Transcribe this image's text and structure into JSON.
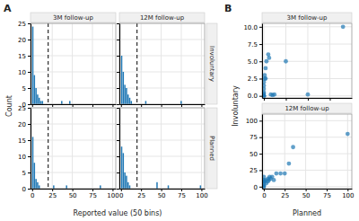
{
  "chart_data": [
    {
      "type": "histogram",
      "title": "A",
      "x_label": "Reported value (50 bins)",
      "y_label": "Count",
      "columns": [
        "3M follow-up",
        "12M follow-up"
      ],
      "rows": [
        "Involuntary",
        "Planned"
      ],
      "bins": [
        0,
        2,
        4,
        6,
        8,
        10,
        12,
        14,
        16,
        18,
        20,
        22,
        24,
        26,
        28,
        30,
        32,
        34,
        36,
        38,
        40,
        42,
        44,
        46,
        48,
        50,
        52,
        54,
        56,
        58,
        60,
        62,
        64,
        66,
        68,
        70,
        72,
        74,
        76,
        78,
        80,
        82,
        84,
        86,
        88,
        90,
        92,
        94,
        96,
        98,
        100
      ],
      "xlim": [
        -2,
        104
      ],
      "ylim": [
        0,
        25
      ],
      "xticks": [
        0,
        25,
        50,
        75,
        100
      ],
      "yticks": [
        0,
        5,
        10,
        15,
        20,
        25
      ],
      "grid": true,
      "reference_line": {
        "x": 20,
        "line_style": "dashed"
      },
      "facets": [
        [
          {
            "values": [
              24,
              9,
              5,
              3,
              2,
              1,
              1,
              0,
              0,
              0,
              0,
              0,
              0,
              0,
              0,
              0,
              0,
              0,
              1,
              0,
              0,
              0,
              0,
              1,
              0,
              0,
              0,
              0,
              0,
              0,
              0,
              0,
              0,
              0,
              0,
              0,
              0,
              0,
              0,
              0,
              0,
              0,
              0,
              0,
              0,
              0,
              0,
              0,
              0,
              0
            ],
            "tick_labels": "y"
          },
          {
            "values": [
              15,
              10,
              6,
              5,
              3,
              2,
              1,
              0,
              0,
              0,
              0,
              0,
              0,
              0,
              0,
              1,
              0,
              0,
              0,
              0,
              0,
              0,
              0,
              0,
              0,
              0,
              0,
              0,
              0,
              0,
              0,
              0,
              0,
              0,
              0,
              0,
              0,
              1,
              0,
              0,
              0,
              0,
              0,
              0,
              0,
              0,
              0,
              0,
              0,
              0
            ],
            "tick_labels": false
          }
        ],
        [
          {
            "values": [
              16,
              8,
              3,
              2,
              1,
              0,
              0,
              0,
              0,
              0,
              0,
              0,
              0,
              1,
              0,
              0,
              0,
              0,
              0,
              0,
              0,
              1,
              0,
              0,
              0,
              0,
              0,
              0,
              0,
              0,
              0,
              0,
              0,
              0,
              0,
              0,
              0,
              0,
              0,
              0,
              0,
              0,
              1,
              0,
              0,
              0,
              0,
              0,
              0,
              0
            ],
            "tick_labels": true
          },
          {
            "values": [
              13,
              11,
              5,
              4,
              2,
              1,
              0,
              0,
              0,
              0,
              0,
              0,
              0,
              0,
              0,
              0,
              0,
              0,
              0,
              0,
              0,
              0,
              2,
              0,
              0,
              0,
              0,
              0,
              0,
              1,
              0,
              0,
              0,
              0,
              0,
              0,
              0,
              0,
              0,
              0,
              0,
              0,
              0,
              0,
              0,
              0,
              0,
              0,
              0,
              1
            ],
            "tick_labels": "x"
          }
        ]
      ]
    },
    {
      "type": "scatter",
      "title": "B",
      "x_label": "Planned",
      "y_label": "Involuntary",
      "grid": true,
      "panels": [
        {
          "title": "3M follow-up",
          "x": [
            0,
            0,
            0,
            0,
            0,
            0,
            0,
            0,
            0,
            1,
            1,
            2,
            2,
            3,
            5,
            6,
            8,
            10,
            12,
            25,
            50,
            90
          ],
          "values": [
            0,
            0,
            0,
            0,
            0.3,
            0.5,
            1.0,
            1.5,
            2.0,
            2.5,
            3.0,
            2.5,
            4.0,
            5.0,
            6.0,
            5.5,
            0.2,
            0.1,
            0.2,
            5.0,
            0.2,
            10.0
          ],
          "xlim": [
            -2,
            100
          ],
          "ylim": [
            -0.3,
            10.5
          ],
          "xticks": [
            0,
            25,
            50,
            75
          ],
          "yticks": [
            {
              "value": 0.0,
              "label": "0.0"
            },
            2.5,
            {
              "value": 5.0,
              "label": "5.0"
            },
            7.5,
            {
              "value": 10.0,
              "label": "10.0"
            }
          ],
          "tick_labels": "y"
        },
        {
          "title": "12M follow-up",
          "x": [
            0,
            0,
            0,
            0,
            0,
            0,
            0,
            1,
            2,
            3,
            5,
            5,
            6,
            7,
            8,
            10,
            12,
            15,
            20,
            25,
            30,
            35,
            100
          ],
          "values": [
            0,
            0,
            2,
            5,
            8,
            10,
            15,
            8,
            10,
            5,
            8,
            12,
            10,
            15,
            12,
            15,
            10,
            20,
            20,
            20,
            35,
            60,
            80
          ],
          "xlim": [
            -2,
            105
          ],
          "ylim": [
            -3,
            110
          ],
          "xticks": [
            0,
            25,
            50,
            75,
            100
          ],
          "yticks": [
            0,
            25,
            50,
            75,
            100
          ],
          "tick_labels": true
        }
      ]
    }
  ]
}
